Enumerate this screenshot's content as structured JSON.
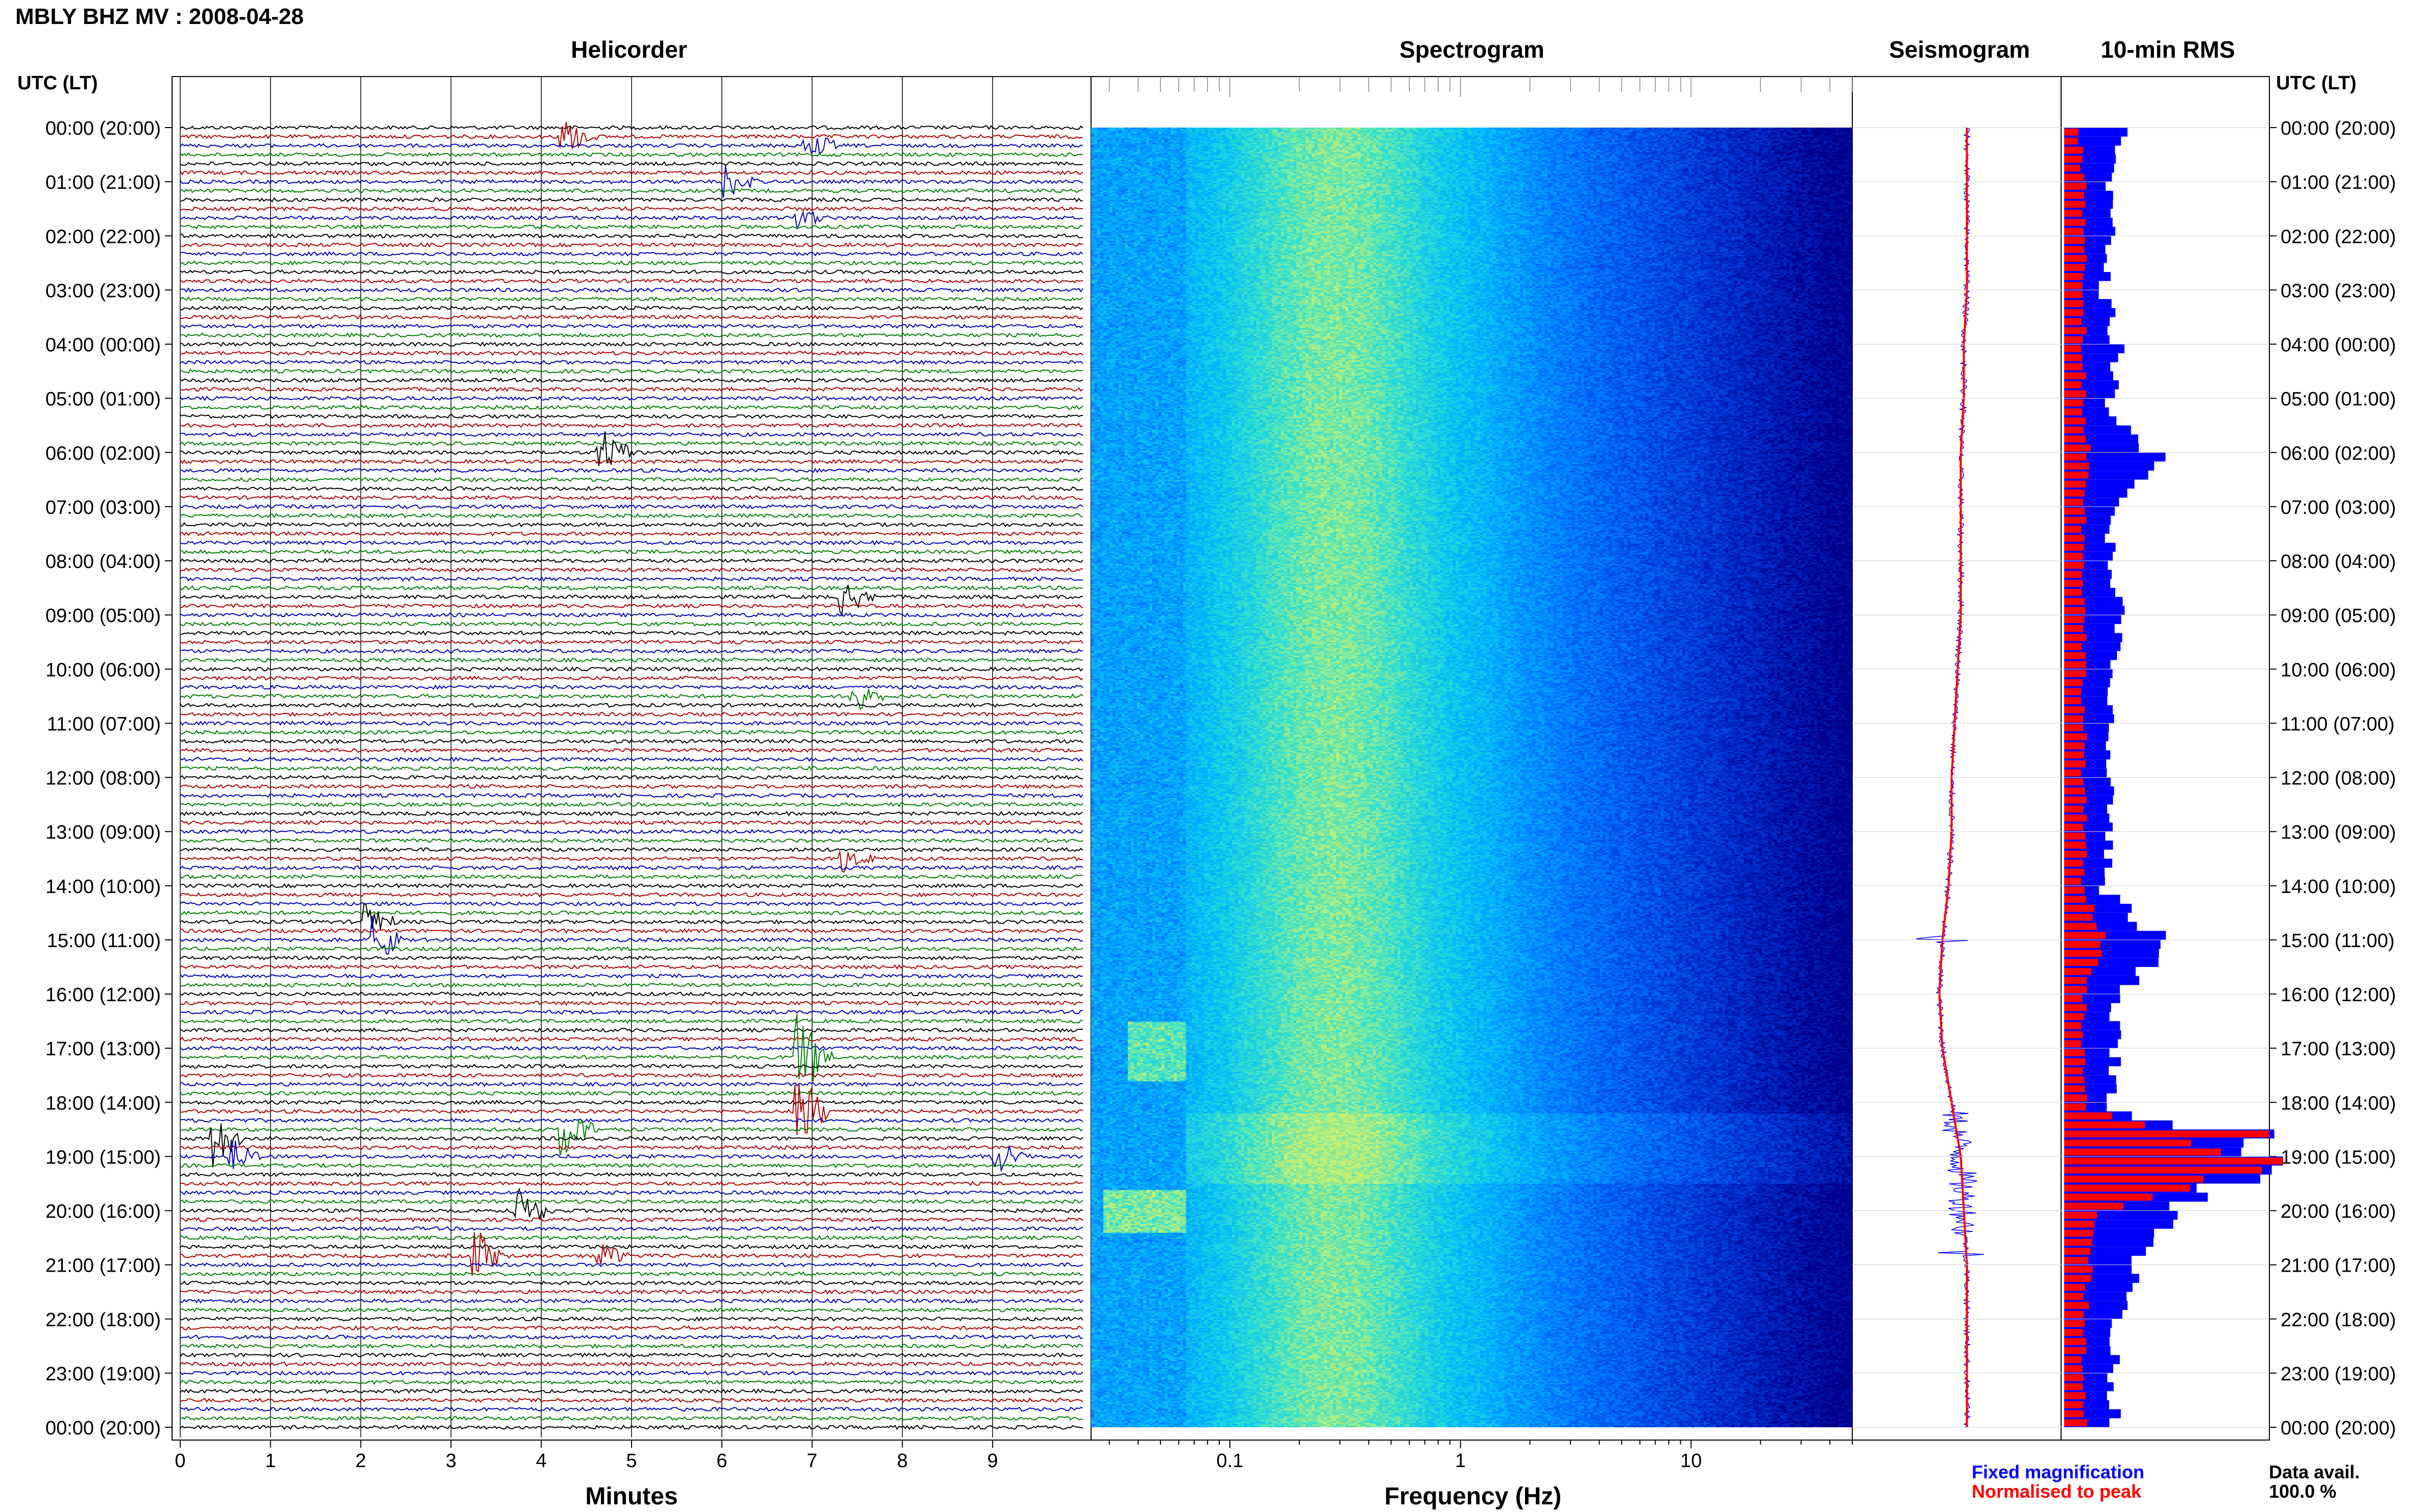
{
  "header": {
    "title": "MBLY BHZ MV : 2008-04-28",
    "panels": [
      "Helicorder",
      "Spectrogram",
      "Seismogram",
      "10-min RMS"
    ],
    "utc_label": "UTC (LT)"
  },
  "footer": {
    "helicorder_xlabel": "Minutes",
    "spectrogram_xlabel": "Frequency (Hz)",
    "legend_fixed": "Fixed magnification",
    "legend_normalised": "Normalised to peak",
    "data_avail_label": "Data avail.",
    "data_avail_value": "100.0 %"
  },
  "colors": {
    "fixed": "#0000ff",
    "normalised": "#ff0000",
    "trace_colors": [
      "#000000",
      "#b00000",
      "#0000c0",
      "#008000"
    ]
  },
  "chart_data": [
    {
      "type": "line",
      "name": "helicorder",
      "title": "Helicorder",
      "xlabel": "Minutes",
      "xticks": [
        "0",
        "1",
        "2",
        "3",
        "4",
        "5",
        "6",
        "7",
        "8",
        "9"
      ],
      "xlim": [
        0,
        10
      ],
      "ytick_labels": [
        "00:00 (20:00)",
        "01:00 (21:00)",
        "02:00 (22:00)",
        "03:00 (23:00)",
        "04:00 (00:00)",
        "05:00 (01:00)",
        "06:00 (02:00)",
        "07:00 (03:00)",
        "08:00 (04:00)",
        "09:00 (05:00)",
        "10:00 (06:00)",
        "11:00 (07:00)",
        "12:00 (08:00)",
        "13:00 (09:00)",
        "14:00 (10:00)",
        "15:00 (11:00)",
        "16:00 (12:00)",
        "17:00 (13:00)",
        "18:00 (14:00)",
        "19:00 (15:00)",
        "20:00 (16:00)",
        "21:00 (17:00)",
        "22:00 (18:00)",
        "23:00 (19:00)",
        "00:00 (20:00)"
      ],
      "lines_per_hour": 6,
      "events": [
        {
          "hour": 0.2,
          "minute": 4.2,
          "amp": 1.5
        },
        {
          "hour": 0.4,
          "minute": 6.9,
          "amp": 1.1
        },
        {
          "hour": 1.0,
          "minute": 6.0,
          "amp": 1.3
        },
        {
          "hour": 1.6,
          "minute": 6.8,
          "amp": 1.0
        },
        {
          "hour": 6.0,
          "minute": 4.6,
          "amp": 2.4
        },
        {
          "hour": 8.6,
          "minute": 7.3,
          "amp": 1.4
        },
        {
          "hour": 10.5,
          "minute": 7.4,
          "amp": 1.2
        },
        {
          "hour": 13.5,
          "minute": 7.3,
          "amp": 1.0
        },
        {
          "hour": 14.6,
          "minute": 2.0,
          "amp": 1.6
        },
        {
          "hour": 15.0,
          "minute": 2.1,
          "amp": 2.0
        },
        {
          "hour": 17.2,
          "minute": 6.8,
          "amp": 3.5
        },
        {
          "hour": 18.2,
          "minute": 6.8,
          "amp": 3.0
        },
        {
          "hour": 18.5,
          "minute": 4.2,
          "amp": 2.2
        },
        {
          "hour": 18.6,
          "minute": 0.3,
          "amp": 2.5
        },
        {
          "hour": 19.0,
          "minute": 0.5,
          "amp": 1.8
        },
        {
          "hour": 19.0,
          "minute": 9.0,
          "amp": 1.5
        },
        {
          "hour": 20.0,
          "minute": 3.7,
          "amp": 1.8
        },
        {
          "hour": 20.8,
          "minute": 3.2,
          "amp": 2.2
        },
        {
          "hour": 20.9,
          "minute": 4.6,
          "amp": 1.2
        }
      ]
    },
    {
      "type": "heatmap",
      "name": "spectrogram",
      "title": "Spectrogram",
      "xlabel": "Frequency (Hz)",
      "x_scale": "log",
      "xlim": [
        0.025,
        50
      ],
      "xticks": [
        "0.1",
        "1",
        "10"
      ],
      "ylim_hours": [
        0,
        24
      ],
      "colormap": [
        "#00008b",
        "#0030d0",
        "#0070ff",
        "#00b4ff",
        "#30e0d0",
        "#c8f070"
      ]
    },
    {
      "type": "line",
      "name": "seismogram",
      "title": "Seismogram",
      "series": [
        {
          "name": "Fixed magnification",
          "color": "#0000ff"
        },
        {
          "name": "Normalised to peak",
          "color": "#ff0000"
        }
      ],
      "drift": [
        0,
        0,
        0,
        0,
        -1,
        -1,
        -2,
        -2,
        -2,
        -2,
        -3,
        -4,
        -5,
        -5,
        -6,
        -8,
        -9,
        -8,
        -5,
        -2,
        -1,
        0,
        0,
        0,
        0
      ]
    },
    {
      "type": "bar",
      "name": "rms",
      "title": "10-min RMS",
      "series": [
        {
          "name": "Fixed magnification",
          "color": "#0000ff",
          "hourly": [
            1.3,
            0.9,
            0.9,
            0.8,
            1.1,
            0.9,
            1.8,
            0.9,
            1.0,
            1.1,
            0.9,
            0.9,
            0.9,
            0.9,
            0.8,
            2.0,
            1.0,
            1.0,
            1.0,
            4.2,
            2.0,
            1.4,
            1.1,
            1.0,
            1.0
          ]
        },
        {
          "name": "Normalised to peak",
          "color": "#ff0000",
          "hourly": [
            0.3,
            0.4,
            0.4,
            0.4,
            0.4,
            0.4,
            0.5,
            0.4,
            0.4,
            0.4,
            0.4,
            0.4,
            0.4,
            0.4,
            0.4,
            0.8,
            0.4,
            0.4,
            0.4,
            4.1,
            0.6,
            0.5,
            0.4,
            0.4,
            0.4
          ]
        }
      ]
    }
  ]
}
